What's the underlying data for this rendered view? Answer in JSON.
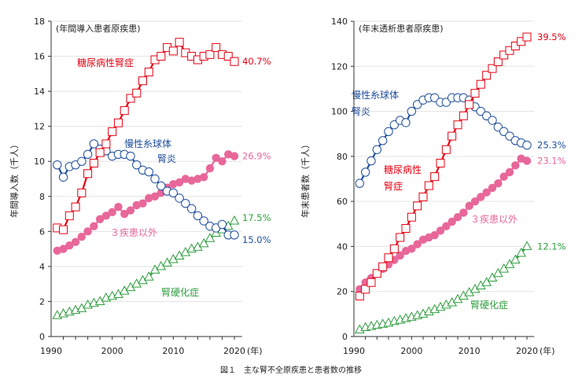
{
  "caption": "図１　主な腎不全原疾患と患者数の推移",
  "colors": {
    "diabetic": "#e60012",
    "gn": "#1f4e9c",
    "other": "#e8679a",
    "nephrosclerosis": "#2e9d3e"
  },
  "chart_data": [
    {
      "type": "line",
      "subtitle": "(年間導入患者原疾患)",
      "ylabel": "年間導入数（千人）",
      "xunit": "(年)",
      "ylim": [
        0,
        18
      ],
      "yticks": [
        0,
        2,
        4,
        6,
        8,
        10,
        12,
        14,
        16,
        18
      ],
      "xlim": [
        1990,
        2021
      ],
      "xticks": [
        1990,
        2000,
        2010,
        2020
      ],
      "grid": true,
      "x": [
        1991,
        1992,
        1993,
        1994,
        1995,
        1996,
        1997,
        1998,
        1999,
        2000,
        2001,
        2002,
        2003,
        2004,
        2005,
        2006,
        2007,
        2008,
        2009,
        2010,
        2011,
        2012,
        2013,
        2014,
        2015,
        2016,
        2017,
        2018,
        2019,
        2020
      ],
      "series": [
        {
          "name": "糖尿病性腎症",
          "key": "diabetic",
          "marker": "square",
          "end_label": "40.7%",
          "values": [
            6.2,
            6.1,
            6.9,
            7.4,
            8.2,
            9.3,
            9.9,
            10.5,
            11.0,
            11.7,
            12.2,
            12.9,
            13.6,
            13.9,
            14.6,
            15.1,
            15.8,
            16.0,
            16.5,
            16.3,
            16.8,
            16.2,
            16.0,
            15.8,
            16.0,
            16.1,
            16.5,
            16.1,
            16.0,
            15.7
          ]
        },
        {
          "name": "慢性糸球体腎炎",
          "name_lines": [
            "慢性糸球体",
            "腎炎"
          ],
          "key": "gn",
          "marker": "circle",
          "end_label": "15.0%",
          "values": [
            9.8,
            9.1,
            9.7,
            9.8,
            10.0,
            10.4,
            11.0,
            10.7,
            10.6,
            10.3,
            10.4,
            10.4,
            10.3,
            9.8,
            9.5,
            9.4,
            9.0,
            8.6,
            8.3,
            8.2,
            7.9,
            7.6,
            7.3,
            6.9,
            6.6,
            6.3,
            6.2,
            6.4,
            5.8,
            5.8
          ]
        },
        {
          "name": "３疾患以外",
          "key": "other",
          "marker": "dot",
          "end_label": "26.9%",
          "values": [
            4.9,
            5.0,
            5.2,
            5.4,
            5.7,
            6.0,
            6.3,
            6.7,
            6.9,
            7.1,
            7.4,
            7.0,
            7.2,
            7.5,
            7.6,
            7.9,
            8.0,
            8.2,
            8.5,
            8.7,
            8.8,
            9.0,
            8.9,
            9.0,
            9.1,
            9.6,
            10.2,
            10.0,
            10.4,
            10.3
          ]
        },
        {
          "name": "腎硬化症",
          "key": "nephrosclerosis",
          "marker": "triangle",
          "end_label": "17.5%",
          "values": [
            1.2,
            1.3,
            1.4,
            1.5,
            1.6,
            1.8,
            1.9,
            2.0,
            2.2,
            2.3,
            2.4,
            2.6,
            2.8,
            3.0,
            3.2,
            3.4,
            3.8,
            4.0,
            4.2,
            4.4,
            4.6,
            4.8,
            5.0,
            5.1,
            5.3,
            5.6,
            5.9,
            6.1,
            6.3,
            6.6
          ]
        }
      ]
    },
    {
      "type": "line",
      "subtitle": "(年末透析患者原疾患)",
      "ylabel": "年末患者数（千人）",
      "xunit": "(年)",
      "ylim": [
        0,
        140
      ],
      "yticks": [
        0,
        20,
        40,
        60,
        80,
        100,
        120,
        140
      ],
      "xlim": [
        1990,
        2021
      ],
      "xticks": [
        1990,
        2000,
        2010,
        2020
      ],
      "grid": true,
      "x": [
        1991,
        1992,
        1993,
        1994,
        1995,
        1996,
        1997,
        1998,
        1999,
        2000,
        2001,
        2002,
        2003,
        2004,
        2005,
        2006,
        2007,
        2008,
        2009,
        2010,
        2011,
        2012,
        2013,
        2014,
        2015,
        2016,
        2017,
        2018,
        2019,
        2020
      ],
      "series": [
        {
          "name": "糖尿病性腎症",
          "name_lines": [
            "糖尿病性",
            "腎症"
          ],
          "key": "diabetic",
          "marker": "square",
          "end_label": "39.5%",
          "values": [
            18,
            21,
            24,
            28,
            31,
            35,
            39,
            44,
            48,
            53,
            58,
            62,
            67,
            71,
            77,
            83,
            89,
            94,
            98,
            103,
            108,
            112,
            116,
            119,
            122,
            125,
            127,
            129,
            131,
            133
          ]
        },
        {
          "name": "慢性糸球体腎炎",
          "name_lines": [
            "慢性糸球体",
            "腎炎"
          ],
          "key": "gn",
          "marker": "circle",
          "end_label": "25.3%",
          "values": [
            68,
            73,
            78,
            83,
            87,
            91,
            94,
            96,
            95,
            100,
            103,
            105,
            106,
            106,
            104,
            104,
            106,
            106,
            106,
            105,
            102,
            100,
            98,
            96,
            93,
            91,
            89,
            87,
            86,
            85
          ]
        },
        {
          "name": "３疾患以外",
          "key": "other",
          "marker": "dot",
          "end_label": "23.1%",
          "values": [
            21,
            24,
            26,
            28,
            30,
            32,
            34,
            36,
            38,
            39,
            41,
            43,
            44,
            45,
            47,
            49,
            51,
            53,
            55,
            58,
            60,
            62,
            64,
            66,
            68,
            71,
            73,
            76,
            79,
            78
          ]
        },
        {
          "name": "腎硬化症",
          "key": "nephrosclerosis",
          "marker": "triangle",
          "end_label": "12.1%",
          "values": [
            3,
            4,
            4.5,
            5,
            5.5,
            6,
            6.7,
            7.3,
            8,
            8.6,
            9.3,
            10,
            11,
            12,
            13,
            14,
            15,
            16.5,
            18,
            19.5,
            21,
            22.5,
            24,
            26,
            28,
            30,
            32,
            34,
            37,
            40
          ]
        }
      ]
    }
  ]
}
